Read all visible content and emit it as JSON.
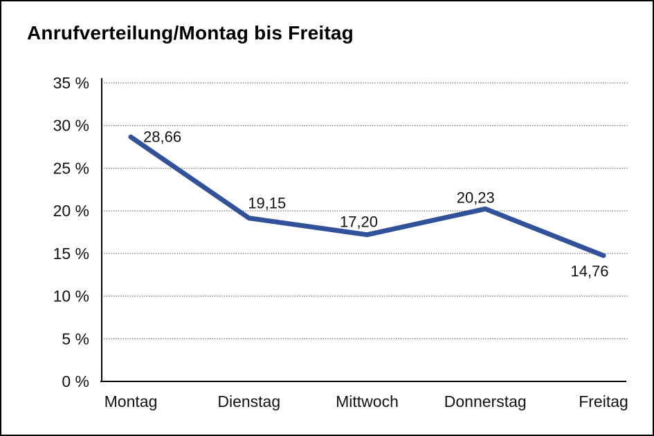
{
  "page": {
    "background": "#ffffff",
    "border_color": "#000000"
  },
  "chart_data": {
    "type": "line",
    "title": "Anrufverteilung/Montag bis Freitag",
    "categories": [
      "Montag",
      "Dienstag",
      "Mittwoch",
      "Donnerstag",
      "Freitag"
    ],
    "values": [
      28.66,
      19.15,
      17.2,
      20.23,
      14.76
    ],
    "point_labels": [
      "28,66",
      "19,15",
      "17,20",
      "20,23",
      "14,76"
    ],
    "xlabel": "",
    "ylabel": "",
    "ylim": [
      0,
      35
    ],
    "y_tick_step": 5,
    "y_tick_labels": [
      "0 %",
      "5 %",
      "10 %",
      "15 %",
      "20 %",
      "25 %",
      "30 %",
      "35 %"
    ],
    "grid": "horizontal-dotted",
    "legend": "none",
    "markers": "none",
    "line_color": "#31519B",
    "axis_color": "#000000",
    "grid_color": "#555555",
    "text_color": "#111111"
  }
}
